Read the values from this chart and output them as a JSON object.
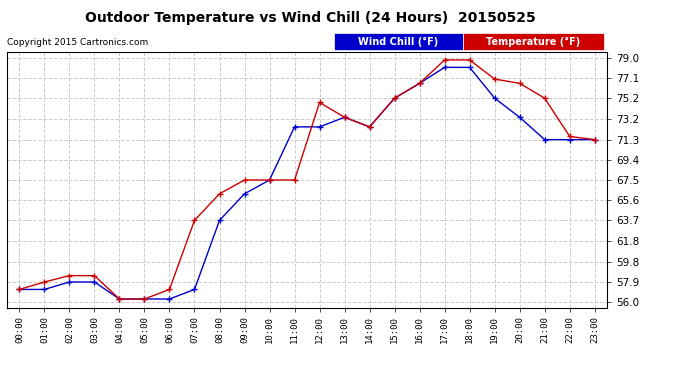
{
  "title": "Outdoor Temperature vs Wind Chill (24 Hours)  20150525",
  "copyright": "Copyright 2015 Cartronics.com",
  "background_color": "#ffffff",
  "plot_bg_color": "#ffffff",
  "grid_color": "#cccccc",
  "hours": [
    "00:00",
    "01:00",
    "02:00",
    "03:00",
    "04:00",
    "05:00",
    "06:00",
    "07:00",
    "08:00",
    "09:00",
    "10:00",
    "11:00",
    "12:00",
    "13:00",
    "14:00",
    "15:00",
    "16:00",
    "17:00",
    "18:00",
    "19:00",
    "20:00",
    "21:00",
    "22:00",
    "23:00"
  ],
  "temp_color": "#cc0000",
  "wind_chill_color": "#0000cc",
  "temperature": [
    57.2,
    57.9,
    58.5,
    58.5,
    56.3,
    56.3,
    57.2,
    63.7,
    66.2,
    67.5,
    67.5,
    67.5,
    74.8,
    73.4,
    72.5,
    75.2,
    76.6,
    78.8,
    78.8,
    77.0,
    76.6,
    75.2,
    71.6,
    71.3
  ],
  "wind_chill": [
    57.2,
    57.2,
    57.9,
    57.9,
    56.3,
    56.3,
    56.3,
    57.2,
    63.7,
    66.2,
    67.5,
    72.5,
    72.5,
    73.4,
    72.5,
    75.2,
    76.6,
    78.1,
    78.1,
    75.2,
    73.4,
    71.3,
    71.3,
    71.3
  ],
  "yticks": [
    56.0,
    57.9,
    59.8,
    61.8,
    63.7,
    65.6,
    67.5,
    69.4,
    71.3,
    73.2,
    75.2,
    77.1,
    79.0
  ],
  "ytick_labels": [
    "56.0",
    "57.9",
    "59.8",
    "61.8",
    "63.7",
    "65.6",
    "67.5",
    "69.4",
    "71.3",
    "73.2",
    "75.2",
    "77.1",
    "79.0"
  ],
  "ylim": [
    55.5,
    79.5
  ],
  "legend_wind_chill_bg": "#0000cc",
  "legend_temp_bg": "#cc0000",
  "legend_wind_chill_text": "Wind Chill (°F)",
  "legend_temp_text": "Temperature (°F)"
}
